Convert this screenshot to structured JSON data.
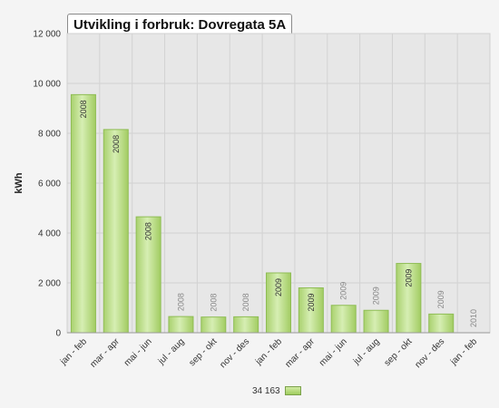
{
  "chart_data": {
    "type": "bar",
    "title": "Utvikling i forbruk:  Dovregata 5A",
    "ylabel": "kWh",
    "xlabel": "",
    "ylim": [
      0,
      12000
    ],
    "yticks": [
      0,
      2000,
      4000,
      6000,
      8000,
      10000,
      12000
    ],
    "ytick_labels": [
      "0",
      "2 000",
      "4 000",
      "6 000",
      "8 000",
      "10 000",
      "12 000"
    ],
    "grid": true,
    "categories": [
      "jan - feb",
      "mar - apr",
      "mai - jun",
      "jul - aug",
      "sep - okt",
      "nov - des",
      "jan - feb",
      "mar - apr",
      "mai - jun",
      "jul - aug",
      "sep - okt",
      "nov - des",
      "jan - feb"
    ],
    "values": [
      9550,
      8150,
      4650,
      650,
      630,
      640,
      2400,
      1800,
      1100,
      900,
      2780,
      750,
      0
    ],
    "bar_labels": [
      "2008",
      "2008",
      "2008",
      "2008",
      "2008",
      "2008",
      "2009",
      "2009",
      "2009",
      "2009",
      "2009",
      "2009",
      "2010"
    ],
    "legend": {
      "label": "34 163",
      "position": "bottom"
    },
    "colors": {
      "bar_top": "#d3ecae",
      "bar_bottom": "#a5d066",
      "bar_border": "#8fbd55",
      "plot_bg": "#e7e7e7",
      "grid": "#d2d2d2"
    }
  }
}
